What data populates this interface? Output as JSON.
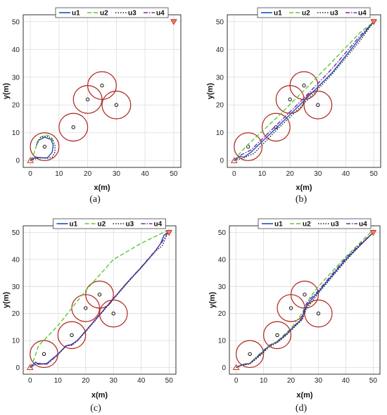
{
  "chart_data": [
    {
      "type": "line",
      "caption": "(a)",
      "xlabel": "x(m)",
      "ylabel": "y(m)",
      "xlim": [
        0,
        50
      ],
      "ylim": [
        0,
        50
      ],
      "xticks": [
        "0",
        "10",
        "20",
        "30",
        "40",
        "50"
      ],
      "yticks": [
        "0",
        "10",
        "20",
        "30",
        "40",
        "50"
      ],
      "grid": true,
      "legend": "top",
      "series": [
        {
          "name": "u1",
          "color": "#1f4fbf",
          "dash": "solid",
          "x": [
            0,
            2,
            4,
            6,
            7.6,
            8.0,
            7.2,
            5.0,
            2.7,
            2.1
          ],
          "y": [
            0,
            1.2,
            1.0,
            1.0,
            3.0,
            5.5,
            7.6,
            8.4,
            7.2,
            5.2
          ]
        },
        {
          "name": "u2",
          "color": "#5fc832",
          "dash": "dashed",
          "x": [
            0,
            1.0,
            1.8,
            2.4,
            3.5,
            5.5,
            7.3,
            8.1
          ],
          "y": [
            0,
            1.8,
            4.2,
            6.6,
            8.4,
            9.2,
            8.6,
            6.6
          ]
        },
        {
          "name": "u3",
          "color": "#222222",
          "dash": "dotted",
          "x": [
            0,
            3,
            6,
            7.6,
            8.6,
            8.6,
            7.6,
            5.5,
            3.5,
            2.4
          ],
          "y": [
            0,
            1.0,
            0.8,
            1.2,
            3.0,
            5.5,
            7.8,
            8.8,
            8.3,
            6.0
          ]
        },
        {
          "name": "u4",
          "color": "#7a2a9a",
          "dash": "dashdot",
          "x": [
            0,
            1.5,
            2.2
          ],
          "y": [
            0,
            1.2,
            2.0
          ]
        }
      ],
      "obstacles": [
        {
          "x": 5,
          "y": 5,
          "r": 5
        },
        {
          "x": 15,
          "y": 12,
          "r": 5
        },
        {
          "x": 20,
          "y": 22,
          "r": 5
        },
        {
          "x": 25,
          "y": 27,
          "r": 5
        },
        {
          "x": 30,
          "y": 20,
          "r": 5
        }
      ],
      "start": {
        "x": 0,
        "y": 0
      },
      "goal": {
        "x": 50,
        "y": 50
      }
    },
    {
      "type": "line",
      "caption": "(b)",
      "xlabel": "x(m)",
      "ylabel": "y(m)",
      "xlim": [
        0,
        50
      ],
      "ylim": [
        0,
        50
      ],
      "xticks": [
        "0",
        "10",
        "20",
        "30",
        "40",
        "50"
      ],
      "yticks": [
        "0",
        "10",
        "20",
        "30",
        "40",
        "50"
      ],
      "grid": true,
      "legend": "top",
      "series": [
        {
          "name": "u1",
          "color": "#1f4fbf",
          "dash": "solid",
          "x": [
            0,
            2,
            3.5,
            6,
            15,
            25,
            35,
            45,
            50
          ],
          "y": [
            0,
            1.5,
            1.2,
            3.0,
            11.6,
            21.5,
            31.5,
            44.0,
            50
          ]
        },
        {
          "name": "u2",
          "color": "#5fc832",
          "dash": "dashed",
          "x": [
            0,
            2,
            5,
            15,
            25,
            35,
            45,
            50
          ],
          "y": [
            0,
            2.6,
            5.8,
            15.2,
            25.2,
            35.5,
            46.0,
            50
          ]
        },
        {
          "name": "u3",
          "color": "#222222",
          "dash": "dotted",
          "x": [
            0,
            3,
            7,
            15,
            25,
            35,
            45,
            50
          ],
          "y": [
            0,
            0.8,
            2.5,
            10.8,
            20.5,
            31.0,
            43.0,
            50
          ]
        },
        {
          "name": "u4",
          "color": "#7a2a9a",
          "dash": "dashdot",
          "x": [
            0,
            2.5,
            6,
            15,
            25,
            35,
            45,
            50
          ],
          "y": [
            0,
            2.0,
            3.8,
            12.6,
            22.5,
            33.0,
            44.8,
            50
          ]
        }
      ],
      "obstacles": [
        {
          "x": 5,
          "y": 5,
          "r": 5
        },
        {
          "x": 15,
          "y": 12,
          "r": 5
        },
        {
          "x": 20,
          "y": 22,
          "r": 5
        },
        {
          "x": 25,
          "y": 27,
          "r": 5
        },
        {
          "x": 30,
          "y": 20,
          "r": 5
        }
      ],
      "start": {
        "x": 0,
        "y": 0
      },
      "goal": {
        "x": 50,
        "y": 50
      }
    },
    {
      "type": "line",
      "caption": "(c)",
      "xlabel": "x(m)",
      "ylabel": "y(m)",
      "xlim": [
        0,
        50
      ],
      "ylim": [
        0,
        50
      ],
      "xticks": [
        "0",
        "10",
        "20",
        "30",
        "40",
        "50"
      ],
      "yticks": [
        "0",
        "10",
        "20",
        "30",
        "40",
        "50"
      ],
      "grid": true,
      "legend": "top",
      "series": [
        {
          "name": "u1",
          "color": "#1f4fbf",
          "dash": "solid",
          "x": [
            0,
            2,
            3,
            6,
            9.5,
            13,
            15,
            17,
            20,
            25,
            30,
            35,
            40,
            45,
            47,
            48.2,
            49.5
          ],
          "y": [
            0,
            2.0,
            1.2,
            1.5,
            4.5,
            8.0,
            8.6,
            10.0,
            13.5,
            19.5,
            25.5,
            31.5,
            37.0,
            43.0,
            46.0,
            49.0,
            50
          ]
        },
        {
          "name": "u2",
          "color": "#5fc832",
          "dash": "dashed",
          "x": [
            0,
            1,
            2,
            3,
            10,
            20,
            30,
            40,
            47,
            50
          ],
          "y": [
            0,
            2.0,
            4.8,
            8.0,
            15.5,
            28.5,
            40.0,
            46.0,
            49.5,
            51.0
          ]
        },
        {
          "name": "u3",
          "color": "#222222",
          "dash": "dotted",
          "x": [
            0,
            2.5,
            6,
            9.5,
            13,
            15,
            17,
            20,
            25,
            30,
            35,
            40,
            45,
            47.5,
            48.6,
            49.5
          ],
          "y": [
            0,
            1.4,
            1.2,
            4.2,
            8.0,
            8.2,
            9.8,
            13.3,
            19.3,
            25.3,
            31.3,
            37.0,
            43.0,
            45.0,
            47.5,
            50
          ]
        },
        {
          "name": "u4",
          "color": "#7a2a9a",
          "dash": "dashdot",
          "x": [
            0,
            2.5,
            6,
            9.5,
            13,
            15,
            17,
            20,
            25,
            30,
            35,
            40,
            45,
            47.5,
            49.0,
            49.5
          ],
          "y": [
            0,
            1.6,
            1.3,
            4.3,
            8.2,
            8.4,
            10.0,
            13.6,
            19.6,
            25.6,
            31.6,
            37.2,
            43.2,
            46.5,
            49.0,
            50
          ]
        }
      ],
      "obstacles": [
        {
          "x": 5,
          "y": 5,
          "r": 5
        },
        {
          "x": 15,
          "y": 12,
          "r": 5
        },
        {
          "x": 20,
          "y": 22,
          "r": 5
        },
        {
          "x": 25,
          "y": 27,
          "r": 5
        },
        {
          "x": 30,
          "y": 20,
          "r": 5
        }
      ],
      "start": {
        "x": 0,
        "y": 0
      },
      "goal": {
        "x": 50,
        "y": 50
      }
    },
    {
      "type": "line",
      "caption": "(d)",
      "xlabel": "x(m)",
      "ylabel": "y(m)",
      "xlim": [
        0,
        50
      ],
      "ylim": [
        0,
        50
      ],
      "xticks": [
        "0",
        "10",
        "20",
        "30",
        "40",
        "50"
      ],
      "yticks": [
        "0",
        "10",
        "20",
        "30",
        "40",
        "50"
      ],
      "grid": true,
      "legend": "top",
      "series": [
        {
          "name": "u1",
          "color": "#1f4fbf",
          "dash": "solid",
          "x": [
            0,
            2,
            5,
            9,
            12,
            15,
            18,
            21,
            24,
            25.2,
            26.5,
            30,
            35,
            40,
            45,
            50
          ],
          "y": [
            0,
            1.0,
            1.5,
            5.0,
            8.0,
            9.5,
            12.0,
            15.0,
            18.0,
            22.0,
            24.0,
            28.0,
            34.0,
            40.0,
            45.0,
            50
          ]
        },
        {
          "name": "u2",
          "color": "#5fc832",
          "dash": "dashed",
          "x": [
            0,
            5,
            10,
            15,
            20,
            24,
            27,
            30,
            35,
            40,
            45,
            50
          ],
          "y": [
            0,
            1.6,
            6.5,
            9.8,
            14.5,
            20.0,
            26.0,
            30.0,
            35.5,
            41.0,
            46.0,
            51.0
          ]
        },
        {
          "name": "u3",
          "color": "#222222",
          "dash": "dotted",
          "x": [
            0,
            2,
            5,
            9,
            12,
            15,
            18,
            21,
            24.2,
            25.5,
            27,
            30,
            35,
            40,
            45,
            50
          ],
          "y": [
            0,
            0.8,
            1.3,
            4.6,
            7.6,
            9.2,
            11.7,
            14.7,
            17.8,
            21.5,
            23.5,
            27.5,
            33.5,
            39.5,
            45.0,
            50
          ]
        },
        {
          "name": "u4",
          "color": "#7a2a9a",
          "dash": "dashdot",
          "x": [
            0,
            2,
            5,
            9,
            12,
            15,
            18,
            21,
            24,
            25.0,
            26.0,
            30,
            35,
            40,
            45,
            50
          ],
          "y": [
            0,
            1.1,
            1.6,
            5.2,
            8.2,
            9.6,
            12.2,
            15.2,
            18.3,
            22.3,
            24.3,
            28.5,
            34.5,
            40.5,
            45.5,
            50
          ]
        }
      ],
      "obstacles": [
        {
          "x": 5,
          "y": 5,
          "r": 5
        },
        {
          "x": 15,
          "y": 12,
          "r": 5
        },
        {
          "x": 20,
          "y": 22,
          "r": 5
        },
        {
          "x": 25,
          "y": 27,
          "r": 5
        },
        {
          "x": 30,
          "y": 20,
          "r": 5
        }
      ],
      "start": {
        "x": 0,
        "y": 0
      },
      "goal": {
        "x": 50,
        "y": 50
      }
    }
  ]
}
